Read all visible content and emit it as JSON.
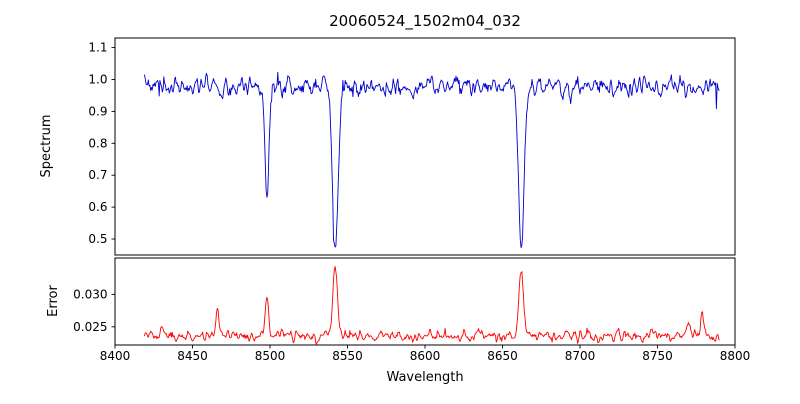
{
  "figure": {
    "background": "#ffffff"
  },
  "chart_data": {
    "type": "line",
    "title": "20060524_1502m04_032",
    "xlabel": "Wavelength",
    "xlim": [
      8400,
      8800
    ],
    "xticks": [
      8400,
      8450,
      8500,
      8550,
      8600,
      8650,
      8700,
      8750,
      8800
    ],
    "x_start": 8419,
    "x_end": 8790,
    "x_step": 0.5,
    "grid": false,
    "legend": null,
    "panels": [
      {
        "name": "spectrum",
        "ylabel": "Spectrum",
        "ylim": [
          0.45,
          1.13
        ],
        "yticks": [
          0.5,
          0.6,
          0.7,
          0.8,
          0.9,
          1.0,
          1.1
        ],
        "tick_decimals": 1,
        "color": "#0000cd",
        "description": "Normalized stellar spectrum, continuum near 1.0, Ca II triplet absorption lines"
      },
      {
        "name": "error",
        "ylabel": "Error",
        "ylim": [
          0.0222,
          0.0356
        ],
        "yticks": [
          0.025,
          0.03
        ],
        "tick_decimals": 3,
        "color": "#ff0000",
        "description": "Error spectrum, baseline near 0.0236 with peaks at absorption-line positions"
      }
    ],
    "spectrum_model": {
      "continuum": 0.978,
      "noise_sigma": 0.015,
      "down_spike_prob": 0.012,
      "down_spike_max": 0.08,
      "up_spike_prob": 0.006,
      "up_spike_max": 0.05,
      "absorption_lines": [
        {
          "center": 8498.0,
          "depth": 0.36,
          "sigma": 1.2
        },
        {
          "center": 8542.1,
          "depth": 0.51,
          "sigma": 1.8
        },
        {
          "center": 8662.1,
          "depth": 0.5,
          "sigma": 1.7
        }
      ]
    },
    "error_model": {
      "baseline": 0.0236,
      "noise_sigma": 0.00042,
      "up_spike_prob": 0.012,
      "up_spike_max": 0.0012,
      "peaks": [
        {
          "center": 8430.0,
          "height": 0.0013,
          "sigma": 1.2
        },
        {
          "center": 8466.0,
          "height": 0.0038,
          "sigma": 1.0
        },
        {
          "center": 8498.0,
          "height": 0.0052,
          "sigma": 1.2
        },
        {
          "center": 8542.1,
          "height": 0.0108,
          "sigma": 1.5
        },
        {
          "center": 8662.1,
          "height": 0.0096,
          "sigma": 1.5
        },
        {
          "center": 8770.0,
          "height": 0.0022,
          "sigma": 1.0
        },
        {
          "center": 8779.0,
          "height": 0.0036,
          "sigma": 1.0
        }
      ]
    },
    "noise_seed": 20060524
  }
}
